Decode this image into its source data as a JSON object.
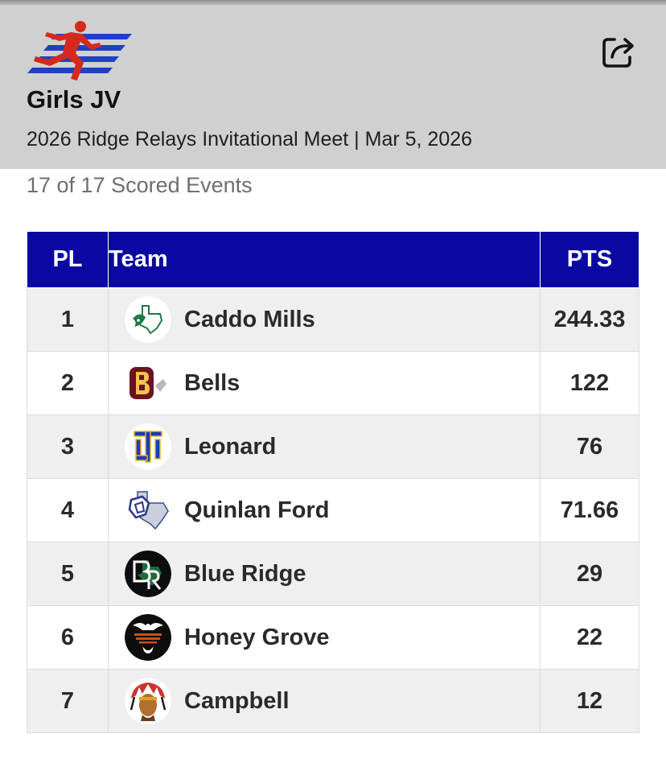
{
  "header": {
    "title": "Girls JV",
    "subtitle": "2026 Ridge Relays Invitational Meet | Mar 5, 2026",
    "logo_icon": "runner-logo-icon",
    "share_icon": "share-icon"
  },
  "events_summary": "17 of 17 Scored Events",
  "table": {
    "columns": {
      "place": "PL",
      "team": "Team",
      "points": "PTS"
    },
    "rows": [
      {
        "place": "1",
        "team": "Caddo Mills",
        "points": "244.33",
        "logo": "caddo-mills-logo-icon"
      },
      {
        "place": "2",
        "team": "Bells",
        "points": "122",
        "logo": "bells-logo-icon"
      },
      {
        "place": "3",
        "team": "Leonard",
        "points": "76",
        "logo": "leonard-logo-icon"
      },
      {
        "place": "4",
        "team": "Quinlan Ford",
        "points": "71.66",
        "logo": "quinlan-ford-logo-icon"
      },
      {
        "place": "5",
        "team": "Blue Ridge",
        "points": "29",
        "logo": "blue-ridge-logo-icon"
      },
      {
        "place": "6",
        "team": "Honey Grove",
        "points": "22",
        "logo": "honey-grove-logo-icon"
      },
      {
        "place": "7",
        "team": "Campbell",
        "points": "12",
        "logo": "campbell-logo-icon"
      }
    ]
  },
  "colors": {
    "header_bg": "#d0d0d0",
    "table_header_bg": "#0a07a3",
    "logo_red": "#d42a1e",
    "logo_blue": "#1f3ec9"
  }
}
